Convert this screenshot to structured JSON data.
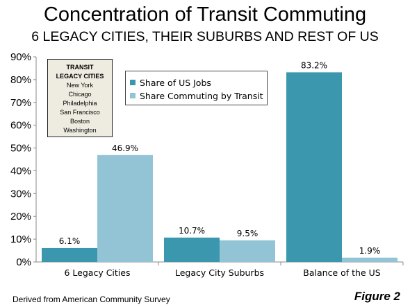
{
  "colors": {
    "series1": "#3a97ad",
    "series2": "#93c4d6",
    "legacy_box_bg": "#eeece1"
  },
  "chart_data": {
    "type": "bar",
    "title": "Concentration of Transit Commuting",
    "subtitle": "6 LEGACY CITIES, THEIR SUBURBS AND REST OF US",
    "categories": [
      "6 Legacy Cities",
      "Legacy City Suburbs",
      "Balance of the US"
    ],
    "series": [
      {
        "name": "Share of US Jobs",
        "values": [
          6.1,
          10.7,
          83.2
        ],
        "labels": [
          "6.1%",
          "10.7%",
          "83.2%"
        ]
      },
      {
        "name": "Share Commuting by Transit",
        "values": [
          46.9,
          9.5,
          1.9
        ],
        "labels": [
          "46.9%",
          "9.5%",
          "1.9%"
        ]
      }
    ],
    "ylim": [
      0,
      90
    ],
    "yticks": [
      0,
      10,
      20,
      30,
      40,
      50,
      60,
      70,
      80,
      90
    ],
    "ytick_labels": [
      "0%",
      "10%",
      "20%",
      "30%",
      "40%",
      "50%",
      "60%",
      "70%",
      "80%",
      "90%"
    ],
    "grid": false,
    "legend_position": "top-center"
  },
  "legacy_box": {
    "heading_line1": "TRANSIT",
    "heading_line2": "LEGACY CITIES",
    "cities": [
      "New York",
      "Chicago",
      "Philadelphia",
      "San Francisco",
      "Boston",
      "Washington"
    ]
  },
  "footer": {
    "source": "Derived from American Community Survey",
    "figure": "Figure 2"
  }
}
